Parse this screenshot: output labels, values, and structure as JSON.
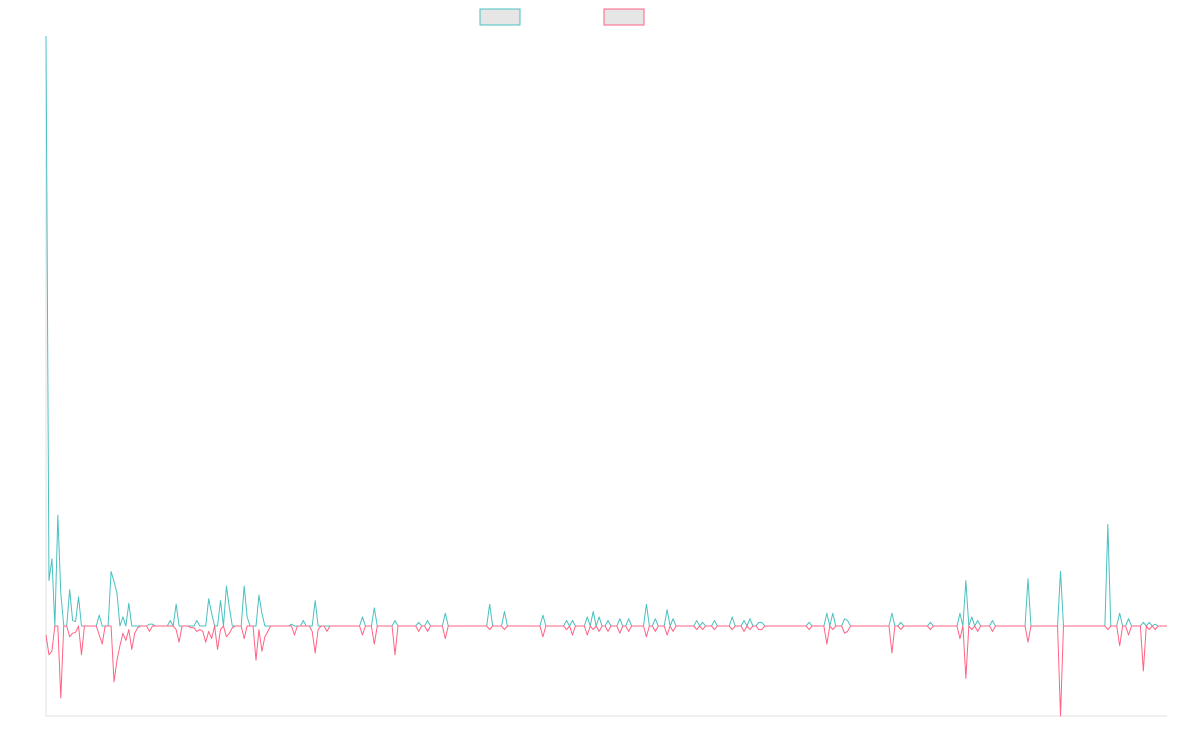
{
  "chart_data": {
    "type": "line",
    "grid": false,
    "legend": {
      "placement": "top-center",
      "entries": [
        "",
        ""
      ]
    },
    "colors": {
      "series_a": "#4bc0c0",
      "series_b": "#ff6384",
      "legend_fill": "#e6e6e6",
      "axis": "#e0e0e0"
    },
    "x_count": 320,
    "ylim": [
      -100,
      650
    ],
    "series": [
      {
        "name": "",
        "values": [
          650,
          50,
          74,
          0,
          122,
          36,
          0,
          0,
          40,
          6,
          5,
          32,
          0,
          0,
          0,
          0,
          0,
          0,
          12,
          0,
          0,
          0,
          60,
          49,
          36,
          0,
          10,
          0,
          25,
          0,
          0,
          0,
          0,
          0,
          0,
          2,
          2,
          0,
          0,
          0,
          0,
          0,
          6,
          0,
          24,
          0,
          0,
          0,
          0,
          0,
          0,
          6,
          0,
          0,
          0,
          30,
          14,
          0,
          0,
          28,
          0,
          44,
          20,
          0,
          0,
          0,
          0,
          44,
          10,
          0,
          0,
          0,
          34,
          14,
          0,
          0,
          0,
          0,
          0,
          0,
          0,
          0,
          0,
          2,
          0,
          0,
          0,
          6,
          0,
          0,
          0,
          28,
          0,
          0,
          0,
          0,
          0,
          0,
          0,
          0,
          0,
          0,
          0,
          0,
          0,
          0,
          0,
          0,
          0,
          0,
          0,
          0,
          0,
          0,
          0,
          0,
          0,
          0,
          0,
          0,
          0,
          0,
          0,
          0,
          0,
          0,
          0,
          0,
          0,
          0,
          0,
          0,
          0,
          0,
          0,
          0,
          0,
          0,
          0,
          0,
          0,
          0,
          0,
          0,
          0,
          0,
          0,
          0,
          0,
          0,
          0,
          0,
          0,
          0,
          0,
          0,
          0,
          0,
          0,
          0,
          0,
          0,
          0,
          0,
          0,
          0,
          0,
          0,
          0,
          0,
          0,
          0,
          0,
          0,
          0,
          0,
          0,
          0,
          0,
          0,
          0,
          0,
          0,
          0,
          0,
          0,
          0,
          0,
          0,
          0,
          0,
          0,
          0,
          0,
          0,
          0,
          0,
          0,
          0,
          0,
          0,
          0,
          0,
          0,
          0,
          0,
          0,
          0,
          0,
          0,
          0,
          0,
          0,
          0,
          0,
          0,
          0,
          0,
          0,
          0,
          0,
          0,
          0,
          0,
          0,
          0,
          0,
          0,
          0,
          0,
          0,
          0,
          0,
          0,
          0,
          0,
          0,
          0,
          0,
          0,
          0,
          0,
          0,
          0,
          0,
          0,
          0,
          0,
          0,
          0,
          0,
          0,
          0,
          0,
          0,
          0,
          0,
          0,
          0,
          0,
          0,
          0,
          0,
          0,
          0,
          0,
          0,
          0,
          0,
          0,
          0,
          0,
          0,
          0,
          0,
          0,
          0,
          0,
          0,
          0,
          0,
          0,
          0,
          0,
          0,
          0,
          0,
          0,
          0,
          0,
          0,
          0,
          0,
          0,
          0,
          0,
          0,
          0,
          0,
          0,
          0,
          0,
          0,
          0,
          0,
          0,
          0,
          0,
          0,
          0,
          0,
          0,
          0,
          0,
          0,
          0,
          0,
          0,
          0,
          0,
          0,
          0,
          0,
          0,
          0,
          0
        ]
      },
      {
        "name": "",
        "values": [
          -10,
          -32,
          -28,
          0,
          0,
          -80,
          0,
          0,
          -12,
          -8,
          -7,
          0,
          -32,
          0,
          0,
          0,
          0,
          0,
          -10,
          -20,
          0,
          0,
          0,
          -62,
          -38,
          -22,
          -8,
          -16,
          -4,
          -26,
          -8,
          -2,
          0,
          0,
          0,
          -6,
          0,
          0,
          0,
          0,
          0,
          0,
          0,
          0,
          -4,
          -18,
          0,
          0,
          0,
          -2,
          -2,
          -6,
          -4,
          -6,
          -18,
          -6,
          -14,
          0,
          -26,
          -4,
          0,
          -12,
          -8,
          -2,
          0,
          0,
          0,
          -14,
          0,
          0,
          0,
          -38,
          -4,
          -28,
          -12,
          -6,
          0,
          0,
          0,
          0,
          0,
          0,
          0,
          0,
          -10,
          0,
          0,
          0,
          0,
          0,
          -6,
          -30,
          -4,
          0,
          0,
          -6,
          0,
          0,
          0,
          0,
          0,
          0,
          0,
          0,
          0,
          0,
          0,
          0,
          0,
          0,
          0,
          0,
          0,
          0,
          0,
          0,
          0,
          0,
          0,
          0,
          0,
          0,
          0,
          0,
          0,
          0,
          0,
          0,
          0,
          0,
          0,
          0,
          0,
          0,
          0,
          0,
          0,
          0,
          0,
          0,
          0,
          0,
          0,
          0,
          0,
          0,
          0,
          0,
          0,
          0,
          0,
          0,
          0,
          0,
          0,
          0,
          0,
          0,
          0,
          0,
          0,
          0,
          0,
          0,
          0,
          0,
          0,
          0,
          0,
          0,
          0,
          0,
          0,
          0,
          0,
          0,
          0,
          0,
          0,
          0,
          0,
          0,
          0,
          0,
          0,
          0,
          0,
          0,
          0,
          0,
          0,
          0,
          0,
          0,
          0,
          0,
          0,
          0,
          0,
          0,
          0,
          0,
          0,
          0,
          0,
          0,
          0,
          0,
          0,
          0,
          0,
          0,
          0,
          0,
          0,
          0,
          0,
          0,
          0,
          0,
          0,
          0,
          0,
          0,
          0,
          0,
          0,
          0,
          0,
          0,
          0,
          0,
          0,
          0,
          0,
          0,
          0,
          0,
          0,
          0,
          0,
          0,
          0,
          0,
          0,
          0,
          0,
          0,
          0,
          0,
          0,
          0,
          0,
          0,
          0,
          0,
          0,
          0,
          0,
          0,
          0,
          0,
          0,
          0,
          0,
          0,
          0,
          0,
          0,
          0,
          0,
          0,
          0,
          0,
          0,
          0,
          0,
          0,
          0,
          0,
          0,
          0,
          0,
          0,
          0,
          0,
          0,
          0,
          0,
          0,
          0,
          0,
          0,
          0,
          0,
          0,
          0,
          0,
          0,
          0,
          0,
          0,
          0,
          0,
          0,
          0,
          0,
          0,
          0,
          0,
          0,
          0,
          0,
          0,
          0,
          0,
          0,
          0,
          0,
          0,
          0,
          0,
          0,
          0,
          0,
          0,
          0,
          0,
          0,
          0,
          0,
          0,
          0,
          0,
          0
        ]
      }
    ],
    "spikes": {
      "a": [
        [
          107,
          10
        ],
        [
          111,
          20
        ],
        [
          118,
          6
        ],
        [
          126,
          4
        ],
        [
          129,
          6
        ],
        [
          135,
          14
        ],
        [
          150,
          24
        ],
        [
          155,
          16
        ],
        [
          168,
          12
        ],
        [
          176,
          6
        ],
        [
          183,
          10
        ],
        [
          185,
          16
        ],
        [
          178,
          6
        ],
        [
          187,
          10
        ],
        [
          190,
          6
        ],
        [
          194,
          8
        ],
        [
          197,
          8
        ],
        [
          203,
          24
        ],
        [
          206,
          8
        ],
        [
          210,
          18
        ],
        [
          212,
          8
        ],
        [
          220,
          6
        ],
        [
          222,
          4
        ],
        [
          226,
          6
        ],
        [
          232,
          10
        ],
        [
          236,
          6
        ],
        [
          238,
          8
        ],
        [
          241,
          4
        ],
        [
          238,
          8
        ],
        [
          242,
          4
        ],
        [
          264,
          14
        ],
        [
          258,
          4
        ],
        [
          266,
          14
        ],
        [
          270,
          8
        ],
        [
          271,
          6
        ],
        [
          286,
          14
        ],
        [
          289,
          4
        ],
        [
          299,
          4
        ],
        [
          311,
          50
        ],
        [
          309,
          14
        ],
        [
          313,
          10
        ],
        [
          315,
          6
        ],
        [
          320,
          6
        ],
        [
          320,
          6
        ],
        [
          332,
          52
        ],
        [
          343,
          60
        ],
        [
          363,
          14
        ],
        [
          366,
          8
        ],
        [
          371,
          4
        ],
        [
          373,
          4
        ],
        [
          375,
          2
        ],
        [
          375,
          2
        ],
        [
          359,
          112
        ],
        [
          359,
          112
        ]
      ],
      "b": [
        [
          107,
          -10
        ],
        [
          111,
          -20
        ],
        [
          118,
          -32
        ],
        [
          126,
          -6
        ],
        [
          129,
          -6
        ],
        [
          135,
          -14
        ],
        [
          150,
          -4
        ],
        [
          155,
          -4
        ],
        [
          168,
          -12
        ],
        [
          176,
          -4
        ],
        [
          183,
          -10
        ],
        [
          185,
          -4
        ],
        [
          178,
          -10
        ],
        [
          187,
          -6
        ],
        [
          190,
          -6
        ],
        [
          194,
          -8
        ],
        [
          197,
          -6
        ],
        [
          203,
          -12
        ],
        [
          206,
          -6
        ],
        [
          210,
          -10
        ],
        [
          212,
          -6
        ],
        [
          220,
          -4
        ],
        [
          222,
          -4
        ],
        [
          226,
          -4
        ],
        [
          232,
          -4
        ],
        [
          236,
          -6
        ],
        [
          238,
          -4
        ],
        [
          241,
          -4
        ],
        [
          238,
          -4
        ],
        [
          242,
          -4
        ],
        [
          264,
          -20
        ],
        [
          258,
          -4
        ],
        [
          266,
          -4
        ],
        [
          270,
          -8
        ],
        [
          271,
          -6
        ],
        [
          286,
          -30
        ],
        [
          289,
          -4
        ],
        [
          299,
          -4
        ],
        [
          311,
          -58
        ],
        [
          309,
          -14
        ],
        [
          313,
          -4
        ],
        [
          315,
          -6
        ],
        [
          320,
          -6
        ],
        [
          320,
          -6
        ],
        [
          332,
          -18
        ],
        [
          343,
          -100
        ],
        [
          363,
          -22
        ],
        [
          366,
          -10
        ],
        [
          371,
          -50
        ],
        [
          373,
          -4
        ],
        [
          375,
          -4
        ],
        [
          375,
          -4
        ],
        [
          359,
          -4
        ],
        [
          359,
          -4
        ]
      ]
    }
  }
}
